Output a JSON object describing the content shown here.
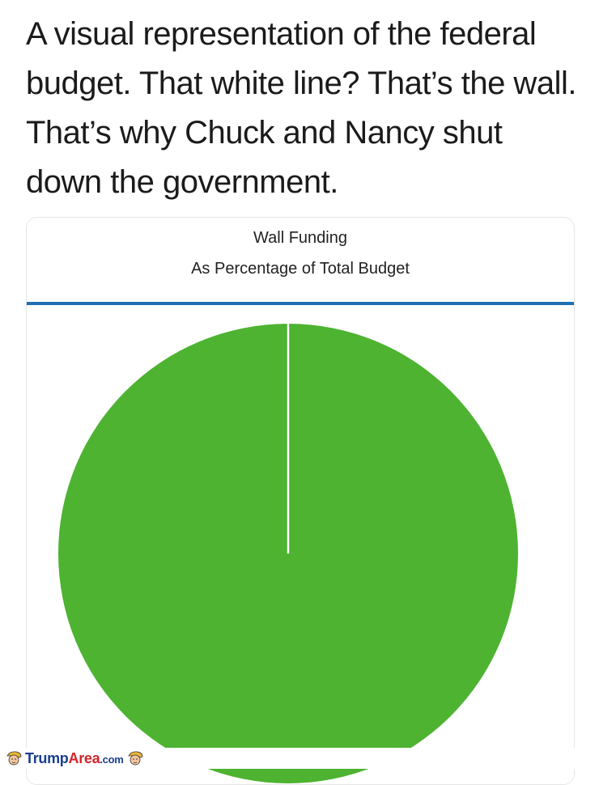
{
  "caption": "A visual representation of the federal budget. That white line? That’s the wall. That’s why Chuck and Nancy shut down the government.",
  "chart_data": {
    "type": "pie",
    "title": "Wall Funding",
    "subtitle": "As Percentage of Total Budget",
    "colors": {
      "slice": "#4db331",
      "separator": "#ffffff",
      "header_rule": "#1f6fb5"
    }
  },
  "watermark": {
    "brand": "TrumpArea.com",
    "brand_parts": [
      "Trump",
      "Area",
      ".com"
    ]
  }
}
